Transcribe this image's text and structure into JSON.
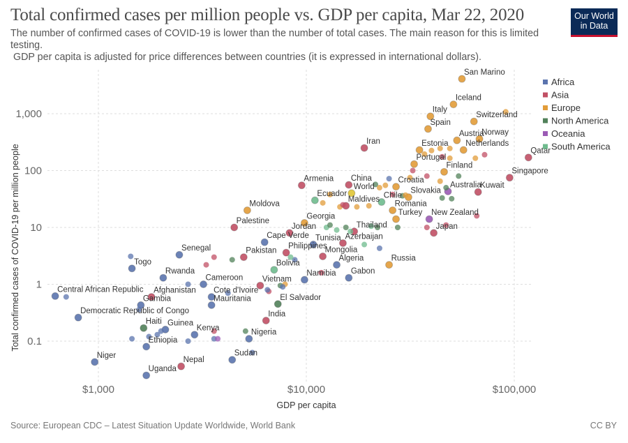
{
  "header": {
    "title": "Total confirmed cases per million people vs. GDP per capita, Mar 22, 2020",
    "subtitle_line1": "The number of confirmed cases of COVID-19 is lower than the number of total cases. The main reason for this is limited testing.",
    "subtitle_line2": " GDP per capita is adjusted for price differences between countries (it is expressed in international dollars).",
    "logo_line1": "Our World",
    "logo_line2": "in Data"
  },
  "footer": {
    "source": "Source: European CDC – Latest Situation Update Worldwide, World Bank",
    "license": "CC BY"
  },
  "chart_data": {
    "type": "scatter",
    "title": "Total confirmed cases per million people vs. GDP per capita, Mar 22, 2020",
    "xlabel": "GDP per capita",
    "ylabel": "Total confirmed cases of COVID-19 per million people",
    "xscale": "log",
    "yscale": "log",
    "xlim": [
      600,
      120000
    ],
    "ylim": [
      0.02,
      4500
    ],
    "x_ticks": [
      {
        "value": 1000,
        "label": "$1,000"
      },
      {
        "value": 10000,
        "label": "$10,000"
      },
      {
        "value": 100000,
        "label": "$100,000"
      }
    ],
    "y_ticks": [
      {
        "value": 0.1,
        "label": "0.1"
      },
      {
        "value": 1,
        "label": "1"
      },
      {
        "value": 10,
        "label": "10"
      },
      {
        "value": 100,
        "label": "100"
      },
      {
        "value": 1000,
        "label": "1,000"
      }
    ],
    "grid": true,
    "legend_position": "top-right",
    "legend": [
      {
        "name": "Africa",
        "color": "#5b74ae"
      },
      {
        "name": "Asia",
        "color": "#c15065"
      },
      {
        "name": "Europe",
        "color": "#e29c39"
      },
      {
        "name": "North America",
        "color": "#51815a"
      },
      {
        "name": "Oceania",
        "color": "#9b5bb5"
      },
      {
        "name": "South America",
        "color": "#6fbb8e"
      }
    ],
    "points": [
      {
        "label": "San Marino",
        "region": "Europe",
        "gdp": 56000,
        "cases": 4100
      },
      {
        "label": "Iceland",
        "region": "Europe",
        "gdp": 51000,
        "cases": 1460
      },
      {
        "label": "Italy",
        "region": "Europe",
        "gdp": 39500,
        "cases": 900
      },
      {
        "label": "Spain",
        "region": "Europe",
        "gdp": 38500,
        "cases": 540
      },
      {
        "label": "Switzerland",
        "region": "Europe",
        "gdp": 64000,
        "cases": 730
      },
      {
        "label": "",
        "region": "Europe",
        "gdp": 91000,
        "cases": 1080
      },
      {
        "label": "Austria",
        "region": "Europe",
        "gdp": 53000,
        "cases": 340
      },
      {
        "label": "Norway",
        "region": "Europe",
        "gdp": 68000,
        "cases": 360
      },
      {
        "label": "Netherlands",
        "region": "Europe",
        "gdp": 57000,
        "cases": 230
      },
      {
        "label": "Estonia",
        "region": "Europe",
        "gdp": 35000,
        "cases": 230
      },
      {
        "label": "Iran",
        "region": "Asia",
        "gdp": 19000,
        "cases": 250
      },
      {
        "label": "Qatar",
        "region": "Asia",
        "gdp": 117000,
        "cases": 170
      },
      {
        "label": "Portugal",
        "region": "Europe",
        "gdp": 33000,
        "cases": 130
      },
      {
        "label": "Finland",
        "region": "Europe",
        "gdp": 46000,
        "cases": 95
      },
      {
        "label": "Singapore",
        "region": "Asia",
        "gdp": 95000,
        "cases": 75
      },
      {
        "label": "Armenia",
        "region": "Asia",
        "gdp": 9500,
        "cases": 55
      },
      {
        "label": "China",
        "region": "Asia",
        "gdp": 16000,
        "cases": 56
      },
      {
        "label": "World",
        "region": "Other",
        "gdp": 16500,
        "cases": 40
      },
      {
        "label": "Croatia",
        "region": "Europe",
        "gdp": 27000,
        "cases": 52
      },
      {
        "label": "Australia",
        "region": "Oceania",
        "gdp": 48000,
        "cases": 43
      },
      {
        "label": "Kuwait",
        "region": "Asia",
        "gdp": 67000,
        "cases": 42
      },
      {
        "label": "Ecuador",
        "region": "South America",
        "gdp": 11000,
        "cases": 30
      },
      {
        "label": "Maldives",
        "region": "Asia",
        "gdp": 15500,
        "cases": 24
      },
      {
        "label": "Chile",
        "region": "South America",
        "gdp": 23000,
        "cases": 28
      },
      {
        "label": "Slovakia",
        "region": "Europe",
        "gdp": 31000,
        "cases": 34
      },
      {
        "label": "Romania",
        "region": "Europe",
        "gdp": 26000,
        "cases": 20
      },
      {
        "label": "Moldova",
        "region": "Europe",
        "gdp": 5200,
        "cases": 20
      },
      {
        "label": "Georgia",
        "region": "Europe",
        "gdp": 9800,
        "cases": 12
      },
      {
        "label": "Turkey",
        "region": "Europe",
        "gdp": 27000,
        "cases": 14
      },
      {
        "label": "New Zealand",
        "region": "Oceania",
        "gdp": 39000,
        "cases": 14
      },
      {
        "label": "Palestine",
        "region": "Asia",
        "gdp": 4500,
        "cases": 10
      },
      {
        "label": "Jordan",
        "region": "Asia",
        "gdp": 8300,
        "cases": 8
      },
      {
        "label": "Thailand",
        "region": "Asia",
        "gdp": 17000,
        "cases": 8.5
      },
      {
        "label": "Japan",
        "region": "Asia",
        "gdp": 41000,
        "cases": 8
      },
      {
        "label": "Cape Verde",
        "region": "Africa",
        "gdp": 6300,
        "cases": 5.5
      },
      {
        "label": "Tunisia",
        "region": "Africa",
        "gdp": 10800,
        "cases": 5
      },
      {
        "label": "Azerbaijan",
        "region": "Asia",
        "gdp": 15000,
        "cases": 5.3
      },
      {
        "label": "Pakistan",
        "region": "Asia",
        "gdp": 5000,
        "cases": 3
      },
      {
        "label": "Philippines",
        "region": "Asia",
        "gdp": 8000,
        "cases": 3.6
      },
      {
        "label": "Mongolia",
        "region": "Asia",
        "gdp": 12000,
        "cases": 3.1
      },
      {
        "label": "Senegal",
        "region": "Africa",
        "gdp": 2450,
        "cases": 3.3
      },
      {
        "label": "Togo",
        "region": "Africa",
        "gdp": 1450,
        "cases": 1.9
      },
      {
        "label": "Bolivia",
        "region": "South America",
        "gdp": 7000,
        "cases": 1.8
      },
      {
        "label": "Algeria",
        "region": "Africa",
        "gdp": 14000,
        "cases": 2.2
      },
      {
        "label": "Russia",
        "region": "Europe",
        "gdp": 25000,
        "cases": 2.2
      },
      {
        "label": "Gabon",
        "region": "Africa",
        "gdp": 16000,
        "cases": 1.3
      },
      {
        "label": "Rwanda",
        "region": "Africa",
        "gdp": 2050,
        "cases": 1.3
      },
      {
        "label": "Namibia",
        "region": "Africa",
        "gdp": 9800,
        "cases": 1.2
      },
      {
        "label": "Cameroon",
        "region": "Africa",
        "gdp": 3200,
        "cases": 1.0
      },
      {
        "label": "Vietnam",
        "region": "Asia",
        "gdp": 6000,
        "cases": 0.95
      },
      {
        "label": "Central African Republic",
        "region": "Africa",
        "gdp": 620,
        "cases": 0.62
      },
      {
        "label": "Afghanistan",
        "region": "Asia",
        "gdp": 1800,
        "cases": 0.6
      },
      {
        "label": "Cote d'Ivoire",
        "region": "Africa",
        "gdp": 3500,
        "cases": 0.6
      },
      {
        "label": "Mauritania",
        "region": "Africa",
        "gdp": 3500,
        "cases": 0.43
      },
      {
        "label": "Gambia",
        "region": "Africa",
        "gdp": 1600,
        "cases": 0.43
      },
      {
        "label": "El Salvador",
        "region": "North America",
        "gdp": 7300,
        "cases": 0.45
      },
      {
        "label": "Democratic Republic of Congo",
        "region": "Africa",
        "gdp": 800,
        "cases": 0.26
      },
      {
        "label": "India",
        "region": "Asia",
        "gdp": 6400,
        "cases": 0.23
      },
      {
        "label": "Haiti",
        "region": "North America",
        "gdp": 1650,
        "cases": 0.17
      },
      {
        "label": "Guinea",
        "region": "Africa",
        "gdp": 2100,
        "cases": 0.16
      },
      {
        "label": "Kenya",
        "region": "Africa",
        "gdp": 2900,
        "cases": 0.13
      },
      {
        "label": "Nigeria",
        "region": "Africa",
        "gdp": 5300,
        "cases": 0.11
      },
      {
        "label": "Ethiopia",
        "region": "Africa",
        "gdp": 1700,
        "cases": 0.08
      },
      {
        "label": "Niger",
        "region": "Africa",
        "gdp": 960,
        "cases": 0.043
      },
      {
        "label": "Sudan",
        "region": "Africa",
        "gdp": 4400,
        "cases": 0.047
      },
      {
        "label": "Nepal",
        "region": "Asia",
        "gdp": 2500,
        "cases": 0.036
      },
      {
        "label": "Uganda",
        "region": "Africa",
        "gdp": 1700,
        "cases": 0.025
      },
      {
        "label": "",
        "region": "Africa",
        "gdp": 700,
        "cases": 0.6
      },
      {
        "label": "",
        "region": "Africa",
        "gdp": 1430,
        "cases": 3.1
      },
      {
        "label": "",
        "region": "Africa",
        "gdp": 2700,
        "cases": 1.0
      },
      {
        "label": "",
        "region": "Africa",
        "gdp": 1570,
        "cases": 0.36
      },
      {
        "label": "",
        "region": "Africa",
        "gdp": 1450,
        "cases": 0.11
      },
      {
        "label": "",
        "region": "Africa",
        "gdp": 1920,
        "cases": 0.13
      },
      {
        "label": "",
        "region": "Africa",
        "gdp": 2000,
        "cases": 0.15
      },
      {
        "label": "",
        "region": "Africa",
        "gdp": 1750,
        "cases": 0.12
      },
      {
        "label": "",
        "region": "Africa",
        "gdp": 2700,
        "cases": 0.1
      },
      {
        "label": "",
        "region": "Africa",
        "gdp": 3600,
        "cases": 0.11
      },
      {
        "label": "",
        "region": "Oceania",
        "gdp": 3750,
        "cases": 0.11
      },
      {
        "label": "",
        "region": "Asia",
        "gdp": 3600,
        "cases": 0.15
      },
      {
        "label": "",
        "region": "Africa",
        "gdp": 5500,
        "cases": 0.063
      },
      {
        "label": "",
        "region": "North America",
        "gdp": 5100,
        "cases": 0.15
      },
      {
        "label": "",
        "region": "Asia",
        "gdp": 3300,
        "cases": 2.2
      },
      {
        "label": "",
        "region": "Asia",
        "gdp": 3600,
        "cases": 3.0
      },
      {
        "label": "",
        "region": "North America",
        "gdp": 4400,
        "cases": 2.7
      },
      {
        "label": "",
        "region": "Asia",
        "gdp": 6600,
        "cases": 0.75
      },
      {
        "label": "",
        "region": "North America",
        "gdp": 7500,
        "cases": 0.95
      },
      {
        "label": "",
        "region": "Europe",
        "gdp": 7900,
        "cases": 1.0
      },
      {
        "label": "",
        "region": "Africa",
        "gdp": 7700,
        "cases": 0.9
      },
      {
        "label": "",
        "region": "Africa",
        "gdp": 4200,
        "cases": 0.7
      },
      {
        "label": "",
        "region": "Africa",
        "gdp": 6500,
        "cases": 0.8
      },
      {
        "label": "",
        "region": "Africa",
        "gdp": 8800,
        "cases": 2.7
      },
      {
        "label": "",
        "region": "Asia",
        "gdp": 11800,
        "cases": 1.6
      },
      {
        "label": "",
        "region": "South America",
        "gdp": 8400,
        "cases": 3.0
      },
      {
        "label": "",
        "region": "South America",
        "gdp": 12500,
        "cases": 10
      },
      {
        "label": "",
        "region": "North America",
        "gdp": 13000,
        "cases": 11
      },
      {
        "label": "",
        "region": "South America",
        "gdp": 14000,
        "cases": 9
      },
      {
        "label": "",
        "region": "North America",
        "gdp": 15500,
        "cases": 10
      },
      {
        "label": "",
        "region": "South America",
        "gdp": 16300,
        "cases": 8.5
      },
      {
        "label": "",
        "region": "South America",
        "gdp": 19000,
        "cases": 5
      },
      {
        "label": "",
        "region": "Africa",
        "gdp": 22500,
        "cases": 4.3
      },
      {
        "label": "",
        "region": "South America",
        "gdp": 20500,
        "cases": 10.5
      },
      {
        "label": "",
        "region": "North America",
        "gdp": 22000,
        "cases": 10
      },
      {
        "label": "",
        "region": "North America",
        "gdp": 27500,
        "cases": 10
      },
      {
        "label": "",
        "region": "Asia",
        "gdp": 38000,
        "cases": 10
      },
      {
        "label": "",
        "region": "Asia",
        "gdp": 47000,
        "cases": 11
      },
      {
        "label": "",
        "region": "Asia",
        "gdp": 66000,
        "cases": 16
      },
      {
        "label": "",
        "region": "Europe",
        "gdp": 13000,
        "cases": 38
      },
      {
        "label": "",
        "region": "Europe",
        "gdp": 12000,
        "cases": 27
      },
      {
        "label": "",
        "region": "Europe",
        "gdp": 14500,
        "cases": 23
      },
      {
        "label": "",
        "region": "Europe",
        "gdp": 17500,
        "cases": 23
      },
      {
        "label": "",
        "region": "Europe",
        "gdp": 20000,
        "cases": 24
      },
      {
        "label": "",
        "region": "Asia",
        "gdp": 15000,
        "cases": 25
      },
      {
        "label": "",
        "region": "North America",
        "gdp": 21500,
        "cases": 57
      },
      {
        "label": "",
        "region": "Europe",
        "gdp": 22500,
        "cases": 50
      },
      {
        "label": "",
        "region": "Europe",
        "gdp": 24000,
        "cases": 55
      },
      {
        "label": "",
        "region": "Africa",
        "gdp": 25000,
        "cases": 72
      },
      {
        "label": "",
        "region": "Asia",
        "gdp": 26000,
        "cases": 38
      },
      {
        "label": "",
        "region": "North America",
        "gdp": 29000,
        "cases": 36
      },
      {
        "label": "",
        "region": "Europe",
        "gdp": 30000,
        "cases": 37
      },
      {
        "label": "",
        "region": "Europe",
        "gdp": 31500,
        "cases": 75
      },
      {
        "label": "",
        "region": "Asia",
        "gdp": 32500,
        "cases": 100
      },
      {
        "label": "",
        "region": "Europe",
        "gdp": 37000,
        "cases": 195
      },
      {
        "label": "",
        "region": "Europe",
        "gdp": 40000,
        "cases": 225
      },
      {
        "label": "",
        "region": "Europe",
        "gdp": 44000,
        "cases": 245
      },
      {
        "label": "",
        "region": "Europe",
        "gdp": 49000,
        "cases": 245
      },
      {
        "label": "",
        "region": "Asia",
        "gdp": 45000,
        "cases": 175
      },
      {
        "label": "",
        "region": "Europe",
        "gdp": 49000,
        "cases": 165
      },
      {
        "label": "",
        "region": "Europe",
        "gdp": 44000,
        "cases": 65
      },
      {
        "label": "",
        "region": "Europe",
        "gdp": 65000,
        "cases": 165
      },
      {
        "label": "",
        "region": "Asia",
        "gdp": 72000,
        "cases": 190
      },
      {
        "label": "",
        "region": "North America",
        "gdp": 54000,
        "cases": 80
      },
      {
        "label": "",
        "region": "North America",
        "gdp": 47000,
        "cases": 50
      },
      {
        "label": "",
        "region": "North America",
        "gdp": 45000,
        "cases": 33
      },
      {
        "label": "",
        "region": "North America",
        "gdp": 50000,
        "cases": 32
      },
      {
        "label": "",
        "region": "Asia",
        "gdp": 38000,
        "cases": 80
      }
    ]
  }
}
